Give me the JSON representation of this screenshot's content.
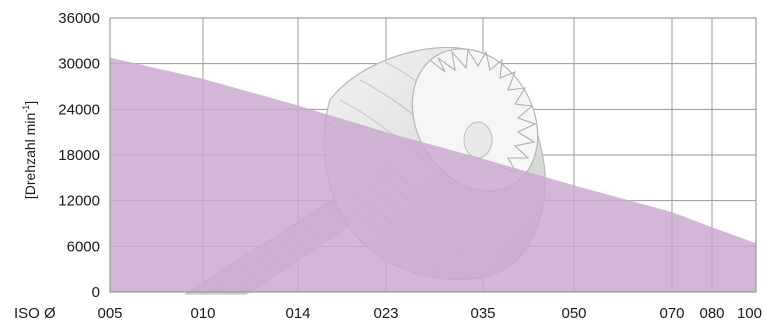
{
  "chart_data": {
    "type": "area",
    "title": "",
    "xlabel": "ISO Ø",
    "ylabel": "[Drehzahl min",
    "ylabel_sup": "-1",
    "ylabel_close": "]",
    "x_ticks": [
      "005",
      "010",
      "014",
      "023",
      "035",
      "050",
      "070",
      "080",
      "100"
    ],
    "y_ticks": [
      "0",
      "6000",
      "12000",
      "18000",
      "24000",
      "30000",
      "36000"
    ],
    "ylim": [
      0,
      36000
    ],
    "grid": true,
    "series": [
      {
        "x": [
          "005",
          "010",
          "014",
          "023",
          "035",
          "050",
          "070",
          "080",
          "100"
        ],
        "values": [
          30800,
          28000,
          24500,
          21000,
          17500,
          14000,
          10500,
          8500,
          6400
        ],
        "color": "#c8a8cd"
      }
    ],
    "background_image": "bur-cutter-tool"
  }
}
